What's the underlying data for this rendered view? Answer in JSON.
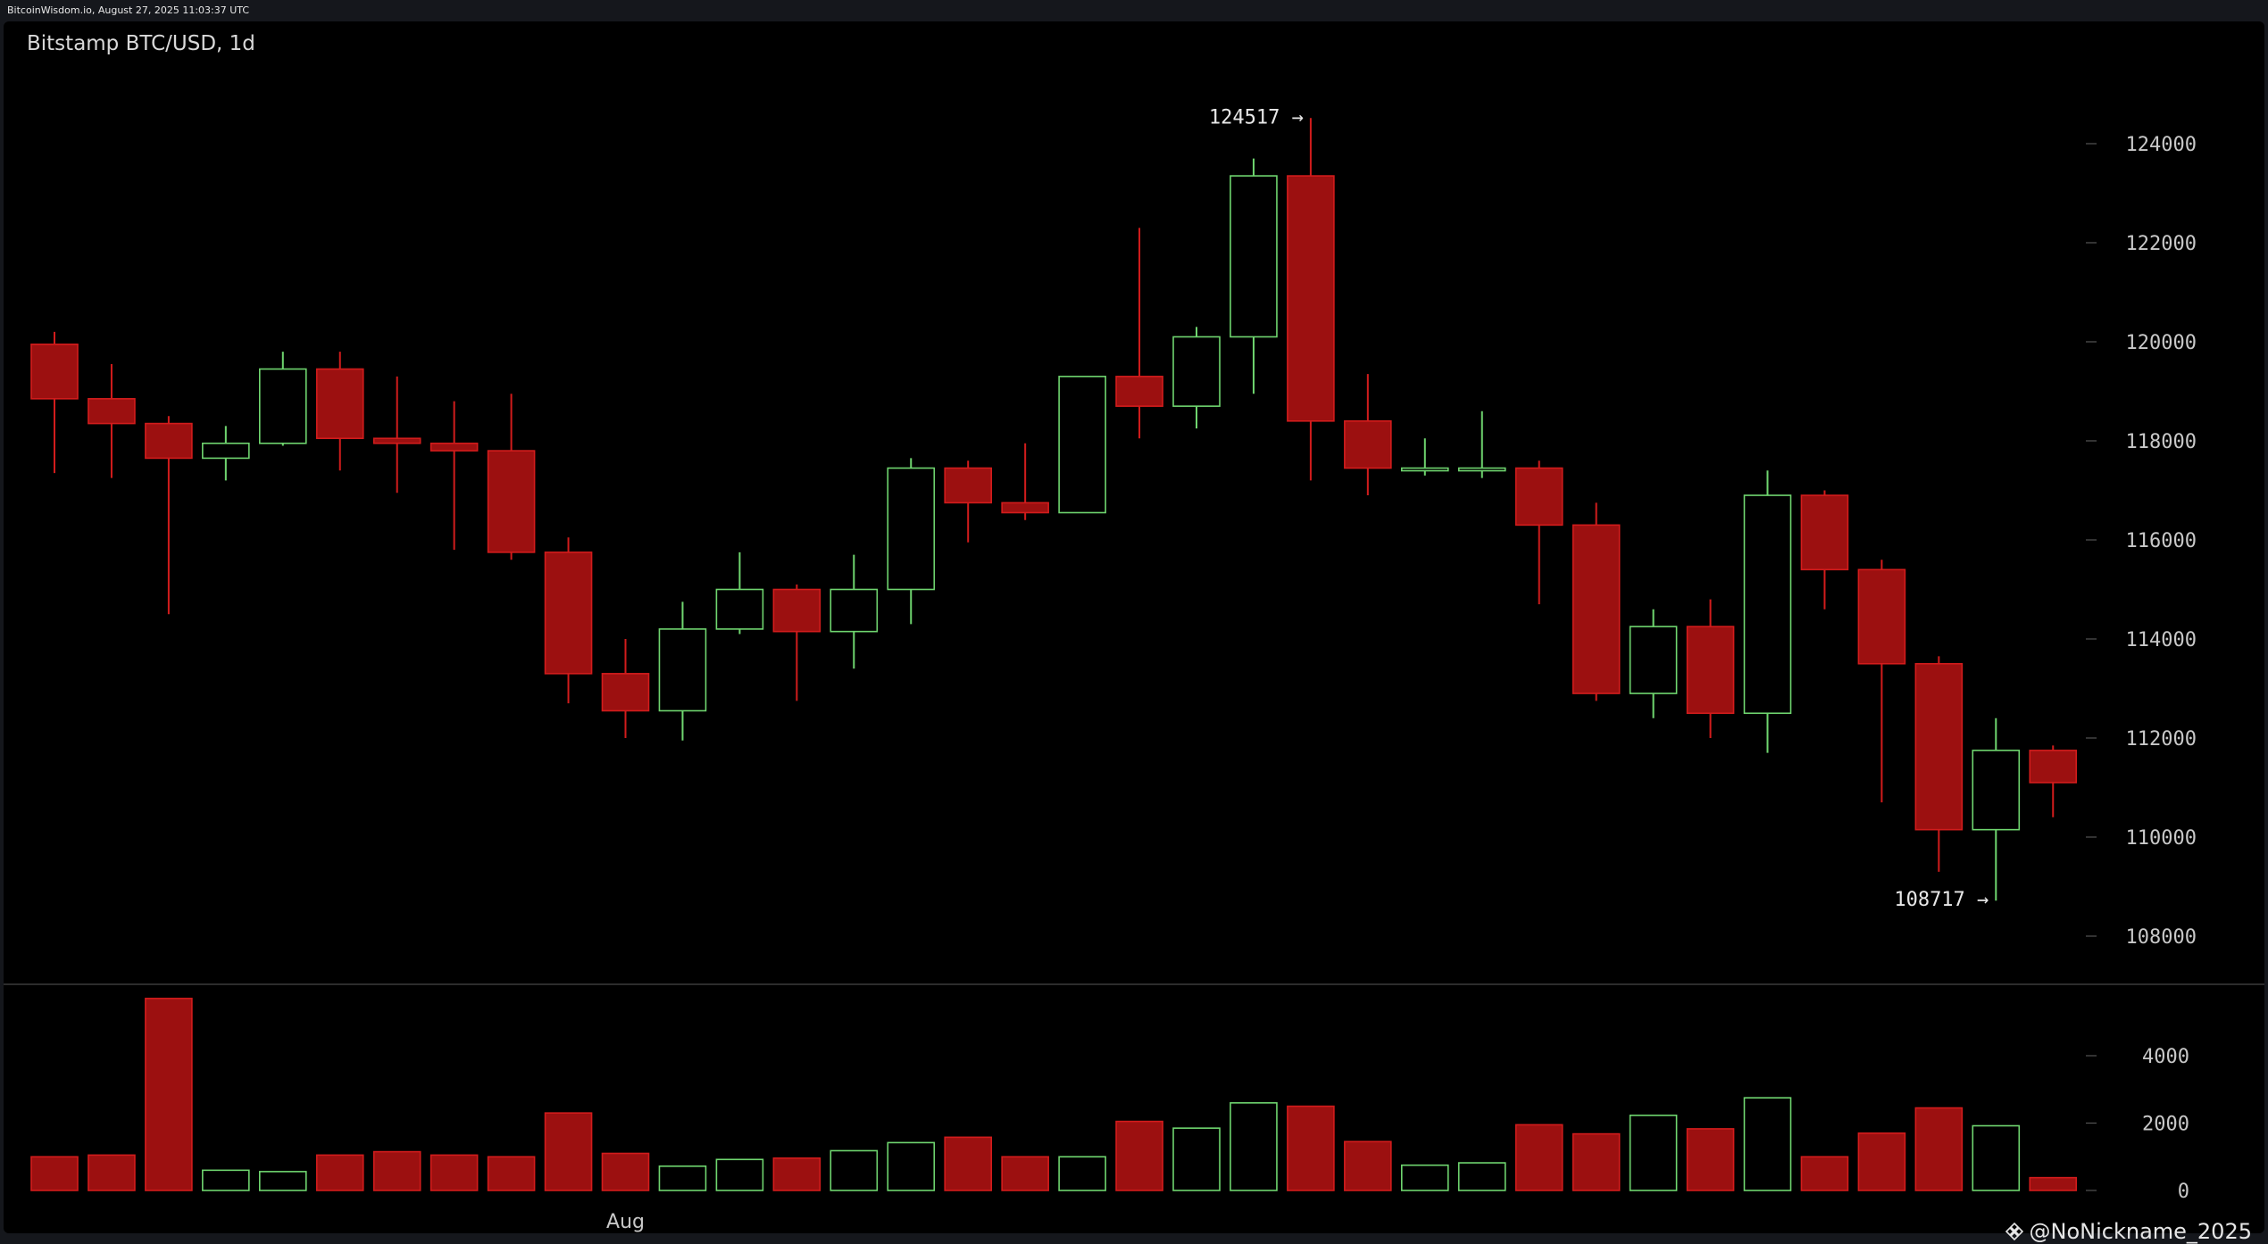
{
  "header": {
    "source_text": "BitcoinWisdom.io, August 27, 2025 11:03:37 UTC"
  },
  "watermark": {
    "text": "@NoNickname_2025",
    "icon": "diamond-logo-icon"
  },
  "colors": {
    "background": "#000000",
    "up": "#6fd56f",
    "down": "#9c1010",
    "down_edge": "#d21c1c",
    "grid_label": "#c8c8c8",
    "divider": "#3a3a3a"
  },
  "chart_data": {
    "type": "candlestick",
    "title": "Bitstamp BTC/USD, 1d",
    "price_axis": {
      "ticks": [
        108000,
        110000,
        112000,
        114000,
        116000,
        118000,
        120000,
        122000,
        124000
      ],
      "range": [
        106000,
        125600
      ]
    },
    "volume_axis": {
      "ticks": [
        0,
        2000,
        4000
      ],
      "range": [
        0,
        5800
      ]
    },
    "x_labels": [
      {
        "index": 10,
        "label": "Aug"
      }
    ],
    "annotations": [
      {
        "index": 22,
        "price": 124517,
        "text": "124517 →",
        "side": "left"
      },
      {
        "index": 34,
        "price": 108717,
        "text": "108717 →",
        "side": "left"
      }
    ],
    "candles": [
      {
        "o": 119950,
        "h": 120200,
        "l": 117350,
        "c": 118850,
        "v": 1000
      },
      {
        "o": 118850,
        "h": 119550,
        "l": 117250,
        "c": 118350,
        "v": 1050
      },
      {
        "o": 118350,
        "h": 118500,
        "l": 114500,
        "c": 117650,
        "v": 5700
      },
      {
        "o": 117650,
        "h": 118300,
        "l": 117200,
        "c": 117950,
        "v": 600
      },
      {
        "o": 117950,
        "h": 119800,
        "l": 117900,
        "c": 119450,
        "v": 560
      },
      {
        "o": 119450,
        "h": 119800,
        "l": 117400,
        "c": 118050,
        "v": 1050
      },
      {
        "o": 118050,
        "h": 119300,
        "l": 116950,
        "c": 117950,
        "v": 1150
      },
      {
        "o": 117950,
        "h": 118800,
        "l": 115800,
        "c": 117800,
        "v": 1050
      },
      {
        "o": 117800,
        "h": 118950,
        "l": 115600,
        "c": 115750,
        "v": 1000
      },
      {
        "o": 115750,
        "h": 116050,
        "l": 112700,
        "c": 113300,
        "v": 2300
      },
      {
        "o": 113300,
        "h": 114000,
        "l": 112000,
        "c": 112550,
        "v": 1100
      },
      {
        "o": 112550,
        "h": 114750,
        "l": 111950,
        "c": 114200,
        "v": 720
      },
      {
        "o": 114200,
        "h": 115750,
        "l": 114100,
        "c": 115000,
        "v": 920
      },
      {
        "o": 115000,
        "h": 115100,
        "l": 112750,
        "c": 114150,
        "v": 960
      },
      {
        "o": 114150,
        "h": 115700,
        "l": 113400,
        "c": 115000,
        "v": 1180
      },
      {
        "o": 115000,
        "h": 117650,
        "l": 114300,
        "c": 117450,
        "v": 1420
      },
      {
        "o": 117450,
        "h": 117600,
        "l": 115950,
        "c": 116750,
        "v": 1580
      },
      {
        "o": 116750,
        "h": 117950,
        "l": 116400,
        "c": 116550,
        "v": 1000
      },
      {
        "o": 116550,
        "h": 119300,
        "l": 116550,
        "c": 119300,
        "v": 1000
      },
      {
        "o": 119300,
        "h": 122300,
        "l": 118050,
        "c": 118700,
        "v": 2050
      },
      {
        "o": 118700,
        "h": 120300,
        "l": 118250,
        "c": 120100,
        "v": 1850
      },
      {
        "o": 120100,
        "h": 123700,
        "l": 118950,
        "c": 123350,
        "v": 2600
      },
      {
        "o": 123350,
        "h": 124517,
        "l": 117200,
        "c": 118400,
        "v": 2500
      },
      {
        "o": 118400,
        "h": 119350,
        "l": 116900,
        "c": 117450,
        "v": 1450
      },
      {
        "o": 117450,
        "h": 118050,
        "l": 117300,
        "c": 117450,
        "v": 750
      },
      {
        "o": 117450,
        "h": 118600,
        "l": 117250,
        "c": 117450,
        "v": 820
      },
      {
        "o": 117450,
        "h": 117600,
        "l": 114700,
        "c": 116300,
        "v": 1950
      },
      {
        "o": 116300,
        "h": 116750,
        "l": 112750,
        "c": 112900,
        "v": 1680
      },
      {
        "o": 112900,
        "h": 114600,
        "l": 112400,
        "c": 114250,
        "v": 2230
      },
      {
        "o": 114250,
        "h": 114800,
        "l": 112000,
        "c": 112500,
        "v": 1830
      },
      {
        "o": 112500,
        "h": 117400,
        "l": 111700,
        "c": 116900,
        "v": 2750
      },
      {
        "o": 116900,
        "h": 117000,
        "l": 114600,
        "c": 115400,
        "v": 1000
      },
      {
        "o": 115400,
        "h": 115600,
        "l": 110700,
        "c": 113500,
        "v": 1700
      },
      {
        "o": 113500,
        "h": 113650,
        "l": 109300,
        "c": 110150,
        "v": 2450
      },
      {
        "o": 110150,
        "h": 112400,
        "l": 108717,
        "c": 111750,
        "v": 1920
      },
      {
        "o": 111750,
        "h": 111850,
        "l": 110400,
        "c": 111100,
        "v": 380
      }
    ]
  }
}
